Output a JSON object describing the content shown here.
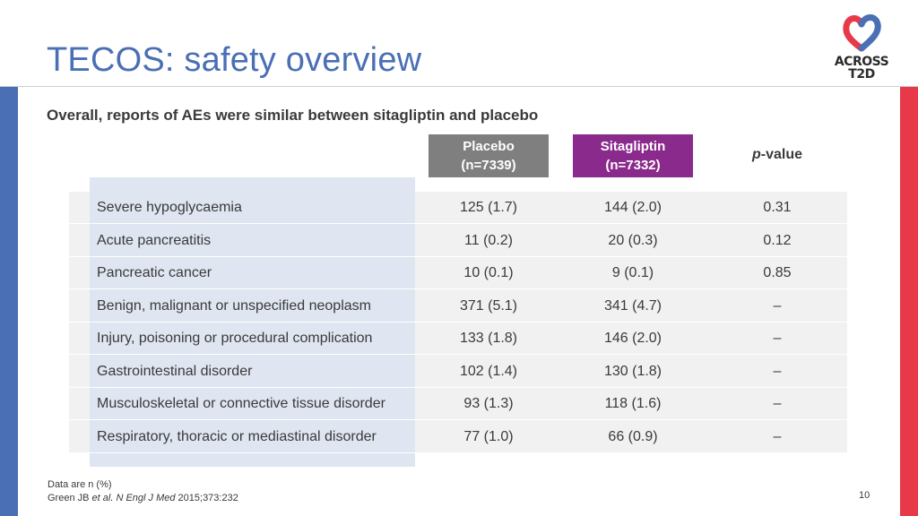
{
  "slide": {
    "title": "TECOS: safety overview",
    "subtitle": "Overall, reports of AEs were similar between sitagliptin and placebo",
    "page_number": "10"
  },
  "logo": {
    "line1": "ACROSS",
    "line2": "T2D",
    "colors": {
      "blue": "#4a6fb5",
      "red": "#e8394a"
    }
  },
  "table": {
    "headers": {
      "placebo": {
        "name": "Placebo",
        "n": "(n=7339)"
      },
      "sitagliptin": {
        "name": "Sitagliptin",
        "n": "(n=7332)"
      },
      "pvalue": {
        "prefix": "p",
        "suffix": "-value"
      }
    },
    "rows": [
      {
        "label": "Severe hypoglycaemia",
        "placebo": "125 (1.7)",
        "sitagliptin": "144 (2.0)",
        "p": "0.31"
      },
      {
        "label": "Acute pancreatitis",
        "placebo": "11 (0.2)",
        "sitagliptin": "20 (0.3)",
        "p": "0.12"
      },
      {
        "label": "Pancreatic cancer",
        "placebo": "10 (0.1)",
        "sitagliptin": "9 (0.1)",
        "p": "0.85"
      },
      {
        "label": "Benign, malignant or unspecified neoplasm",
        "placebo": "371 (5.1)",
        "sitagliptin": "341 (4.7)",
        "p": "–"
      },
      {
        "label": "Injury, poisoning or procedural complication",
        "placebo": "133 (1.8)",
        "sitagliptin": "146 (2.0)",
        "p": "–"
      },
      {
        "label": "Gastrointestinal disorder",
        "placebo": "102 (1.4)",
        "sitagliptin": "130 (1.8)",
        "p": "–"
      },
      {
        "label": "Musculoskeletal or connective tissue disorder",
        "placebo": "93 (1.3)",
        "sitagliptin": "118 (1.6)",
        "p": "–"
      },
      {
        "label": "Respiratory, thoracic or mediastinal disorder",
        "placebo": "77 (1.0)",
        "sitagliptin": "66 (0.9)",
        "p": "–"
      }
    ]
  },
  "footnote": {
    "line1": "Data are n (%)",
    "ref_author": "Green JB ",
    "ref_etal": "et al.",
    "ref_journal": " N Engl J Med",
    "ref_rest": " 2015;373:232"
  }
}
